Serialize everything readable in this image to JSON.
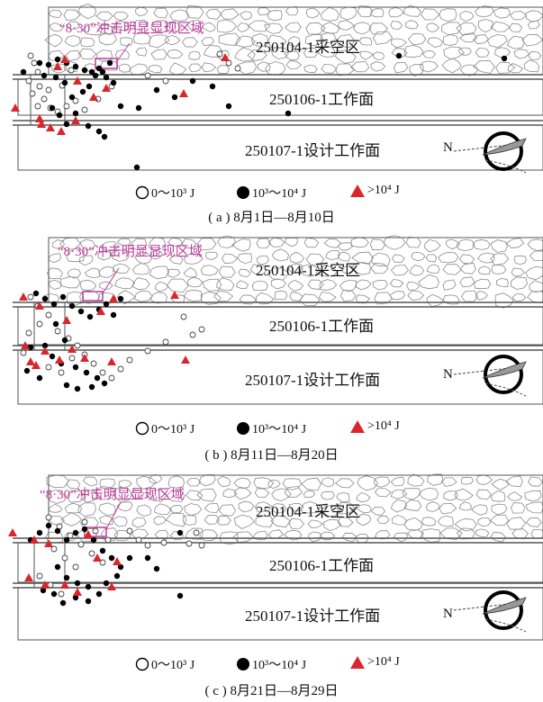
{
  "colors": {
    "annotation": "#c23a9c",
    "small_event": "#ffffff",
    "medium_event": "#000000",
    "large_event": "#d9262b",
    "outline": "#555555"
  },
  "labels": {
    "goaf": "250104-1采空区",
    "face": "250106-1工作面",
    "design_face": "250107-1设计工作面",
    "annotation": "“8·30”冲击明显显现区域",
    "north": "N"
  },
  "legend": [
    {
      "icon": "open-circle-icon",
      "text": "0～10³ J"
    },
    {
      "icon": "filled-circle-icon",
      "text": "10³～10⁴ J"
    },
    {
      "icon": "red-triangle-icon",
      "text": ">10⁴ J"
    }
  ],
  "panels": [
    {
      "caption": "( a ) 8月1日—8月10日",
      "small": [
        [
          20,
          62
        ],
        [
          24,
          70
        ],
        [
          28,
          80
        ],
        [
          18,
          90
        ],
        [
          30,
          96
        ],
        [
          22,
          104
        ],
        [
          35,
          110
        ],
        [
          28,
          118
        ],
        [
          42,
          120
        ],
        [
          50,
          124
        ],
        [
          60,
          118
        ],
        [
          70,
          112
        ],
        [
          80,
          122
        ],
        [
          95,
          110
        ],
        [
          110,
          96
        ],
        [
          150,
          84
        ],
        [
          170,
          90
        ],
        [
          230,
          60
        ],
        [
          240,
          70
        ],
        [
          250,
          76
        ],
        [
          40,
          100
        ],
        [
          55,
          95
        ],
        [
          65,
          78
        ]
      ],
      "medium": [
        [
          30,
          70
        ],
        [
          40,
          72
        ],
        [
          50,
          66
        ],
        [
          60,
          70
        ],
        [
          70,
          74
        ],
        [
          80,
          78
        ],
        [
          88,
          80
        ],
        [
          92,
          84
        ],
        [
          96,
          76
        ],
        [
          100,
          80
        ],
        [
          104,
          86
        ],
        [
          108,
          70
        ],
        [
          112,
          92
        ],
        [
          85,
          96
        ],
        [
          78,
          102
        ],
        [
          66,
          108
        ],
        [
          58,
          92
        ],
        [
          48,
          86
        ],
        [
          35,
          84
        ],
        [
          44,
          120
        ],
        [
          52,
          128
        ],
        [
          70,
          126
        ],
        [
          84,
          140
        ],
        [
          96,
          146
        ],
        [
          120,
          118
        ],
        [
          140,
          120
        ],
        [
          160,
          100
        ],
        [
          180,
          108
        ],
        [
          200,
          90
        ],
        [
          222,
          96
        ],
        [
          240,
          118
        ],
        [
          306,
          126
        ],
        [
          429,
          62
        ],
        [
          546,
          65
        ],
        [
          138,
          186
        ],
        [
          12,
          80
        ],
        [
          60,
          138
        ],
        [
          102,
          152
        ]
      ],
      "large": [
        [
          50,
          74
        ],
        [
          58,
          66
        ],
        [
          72,
          90
        ],
        [
          104,
          98
        ],
        [
          90,
          108
        ],
        [
          190,
          104
        ],
        [
          236,
          64
        ],
        [
          3,
          120
        ],
        [
          32,
          138
        ],
        [
          42,
          142
        ],
        [
          54,
          146
        ],
        [
          70,
          134
        ],
        [
          30,
          132
        ]
      ]
    },
    {
      "caption": "( b ) 8月11日—8月20日",
      "small": [
        [
          20,
          330
        ],
        [
          28,
          340
        ],
        [
          40,
          350
        ],
        [
          30,
          360
        ],
        [
          18,
          370
        ],
        [
          50,
          368
        ],
        [
          62,
          376
        ],
        [
          72,
          384
        ],
        [
          80,
          394
        ],
        [
          90,
          404
        ],
        [
          100,
          414
        ],
        [
          110,
          420
        ],
        [
          120,
          410
        ],
        [
          130,
          400
        ],
        [
          150,
          390
        ],
        [
          170,
          380
        ],
        [
          200,
          372
        ],
        [
          40,
          408
        ],
        [
          54,
          414
        ],
        [
          66,
          398
        ],
        [
          12,
          392
        ],
        [
          190,
          352
        ],
        [
          210,
          366
        ]
      ],
      "medium": [
        [
          26,
          326
        ],
        [
          36,
          332
        ],
        [
          46,
          338
        ],
        [
          56,
          330
        ],
        [
          66,
          340
        ],
        [
          76,
          346
        ],
        [
          86,
          352
        ],
        [
          96,
          344
        ],
        [
          104,
          338
        ],
        [
          112,
          350
        ],
        [
          120,
          332
        ],
        [
          48,
          360
        ],
        [
          58,
          378
        ],
        [
          36,
          384
        ],
        [
          20,
          386
        ],
        [
          44,
          396
        ],
        [
          54,
          404
        ],
        [
          70,
          408
        ],
        [
          82,
          414
        ],
        [
          94,
          420
        ],
        [
          88,
          430
        ],
        [
          102,
          426
        ],
        [
          16,
          412
        ],
        [
          30,
          420
        ],
        [
          60,
          428
        ],
        [
          72,
          432
        ]
      ],
      "large": [
        [
          12,
          330
        ],
        [
          30,
          340
        ],
        [
          60,
          356
        ],
        [
          180,
          328
        ],
        [
          14,
          384
        ],
        [
          20,
          402
        ],
        [
          26,
          406
        ],
        [
          36,
          390
        ],
        [
          66,
          388
        ],
        [
          80,
          398
        ],
        [
          192,
          400
        ],
        [
          98,
          346
        ],
        [
          112,
          332
        ],
        [
          52,
          400
        ],
        [
          110,
          402
        ]
      ]
    },
    {
      "caption": "( c ) 8月21日—8月29日",
      "small": [
        [
          40,
          575
        ],
        [
          52,
          585
        ],
        [
          64,
          595
        ],
        [
          76,
          605
        ],
        [
          88,
          615
        ],
        [
          100,
          625
        ],
        [
          46,
          610
        ],
        [
          58,
          620
        ],
        [
          70,
          630
        ],
        [
          30,
          640
        ],
        [
          42,
          650
        ],
        [
          54,
          660
        ],
        [
          150,
          606
        ],
        [
          168,
          603
        ],
        [
          196,
          604
        ],
        [
          204,
          592
        ],
        [
          130,
          590
        ],
        [
          140,
          600
        ],
        [
          210,
          606
        ],
        [
          80,
          580
        ],
        [
          92,
          590
        ],
        [
          106,
          600
        ]
      ],
      "medium": [
        [
          30,
          592
        ],
        [
          40,
          584
        ],
        [
          50,
          590
        ],
        [
          60,
          600
        ],
        [
          70,
          592
        ],
        [
          80,
          588
        ],
        [
          90,
          600
        ],
        [
          100,
          612
        ],
        [
          110,
          620
        ],
        [
          120,
          630
        ],
        [
          130,
          620
        ],
        [
          50,
          630
        ],
        [
          60,
          642
        ],
        [
          72,
          648
        ],
        [
          84,
          652
        ],
        [
          96,
          660
        ],
        [
          104,
          648
        ],
        [
          116,
          640
        ],
        [
          34,
          656
        ],
        [
          46,
          660
        ],
        [
          56,
          670
        ],
        [
          70,
          664
        ],
        [
          84,
          668
        ],
        [
          150,
          620
        ],
        [
          186,
          592
        ],
        [
          186,
          662
        ],
        [
          160,
          632
        ],
        [
          20,
          600
        ]
      ],
      "large": [
        [
          0,
          592
        ],
        [
          24,
          600
        ],
        [
          84,
          594
        ],
        [
          116,
          624
        ],
        [
          18,
          642
        ],
        [
          36,
          650
        ],
        [
          58,
          650
        ],
        [
          72,
          658
        ],
        [
          110,
          652
        ],
        [
          40,
          604
        ],
        [
          94,
          620
        ]
      ]
    }
  ]
}
